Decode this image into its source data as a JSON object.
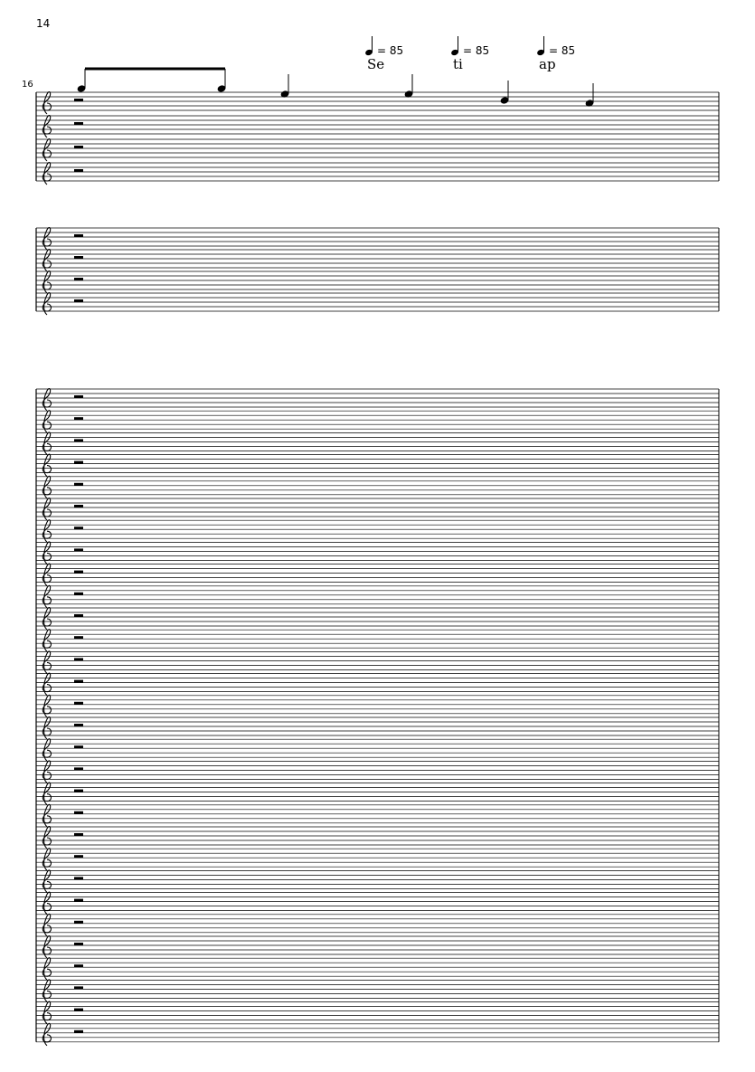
{
  "page_number": "14",
  "measure_number": "16",
  "tempo_marks": [
    {
      "text": "= 85",
      "lyric": "Se"
    },
    {
      "text": "= 85",
      "lyric": "ti"
    },
    {
      "text": "= 85",
      "lyric": "ap"
    }
  ]
}
